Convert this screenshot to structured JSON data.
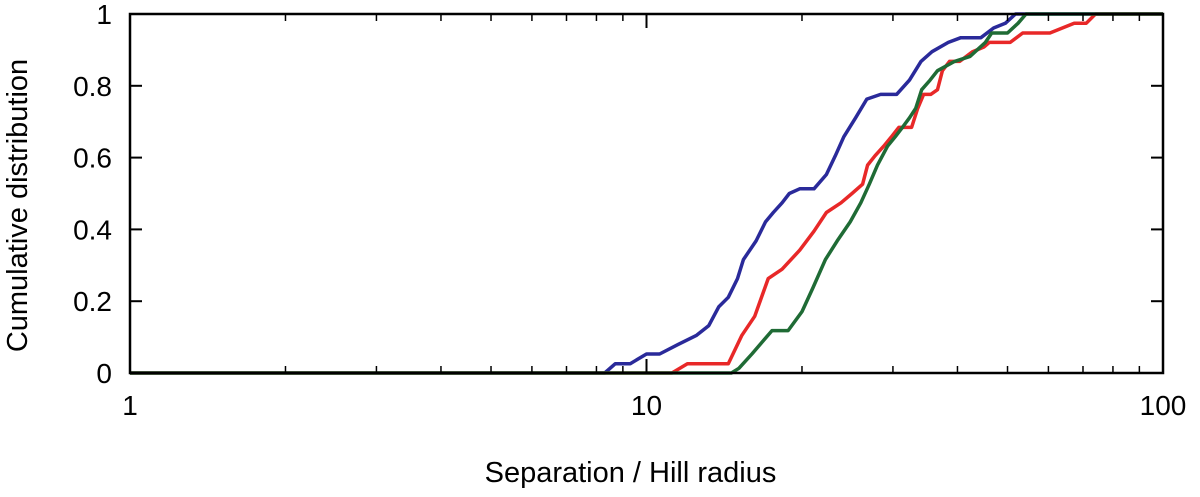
{
  "chart_data": {
    "type": "line",
    "title": "",
    "xlabel": "Separation / Hill radius",
    "ylabel": "Cumulative distribution",
    "x_scale": "log",
    "xlim": [
      1,
      100
    ],
    "ylim": [
      0,
      1
    ],
    "grid": false,
    "legend": "none",
    "x_ticks": [
      {
        "value": 1,
        "label": "1"
      },
      {
        "value": 10,
        "label": "10"
      },
      {
        "value": 100,
        "label": "100"
      }
    ],
    "y_ticks": [
      {
        "value": 0,
        "label": "0"
      },
      {
        "value": 0.2,
        "label": "0.2"
      },
      {
        "value": 0.4,
        "label": "0.4"
      },
      {
        "value": 0.6,
        "label": "0.6"
      },
      {
        "value": 0.8,
        "label": "0.8"
      },
      {
        "value": 1,
        "label": "1"
      }
    ],
    "series": [
      {
        "color": "#2a2a9a",
        "points": [
          [
            1,
            0
          ],
          [
            8.3,
            0
          ],
          [
            8.7,
            0.026
          ],
          [
            9.3,
            0.026
          ],
          [
            10.0,
            0.053
          ],
          [
            10.6,
            0.053
          ],
          [
            11.5,
            0.079
          ],
          [
            12.5,
            0.105
          ],
          [
            13.2,
            0.132
          ],
          [
            13.8,
            0.184
          ],
          [
            14.4,
            0.211
          ],
          [
            15.0,
            0.263
          ],
          [
            15.4,
            0.316
          ],
          [
            16.3,
            0.368
          ],
          [
            17.0,
            0.421
          ],
          [
            17.6,
            0.447
          ],
          [
            18.3,
            0.474
          ],
          [
            18.9,
            0.5
          ],
          [
            19.8,
            0.513
          ],
          [
            21.1,
            0.513
          ],
          [
            22.3,
            0.553
          ],
          [
            23.2,
            0.605
          ],
          [
            24.1,
            0.658
          ],
          [
            25.4,
            0.711
          ],
          [
            26.7,
            0.763
          ],
          [
            28.4,
            0.776
          ],
          [
            30.5,
            0.776
          ],
          [
            32.3,
            0.816
          ],
          [
            34.0,
            0.868
          ],
          [
            35.7,
            0.895
          ],
          [
            38.4,
            0.921
          ],
          [
            40.6,
            0.934
          ],
          [
            44.4,
            0.934
          ],
          [
            47.0,
            0.961
          ],
          [
            49.5,
            0.974
          ],
          [
            51.8,
            1.0
          ],
          [
            100,
            1.0
          ]
        ]
      },
      {
        "color": "#e82828",
        "points": [
          [
            1,
            0
          ],
          [
            11.2,
            0
          ],
          [
            12.0,
            0.026
          ],
          [
            14.4,
            0.026
          ],
          [
            15.3,
            0.105
          ],
          [
            16.2,
            0.158
          ],
          [
            17.2,
            0.263
          ],
          [
            18.3,
            0.289
          ],
          [
            19.8,
            0.342
          ],
          [
            21.1,
            0.395
          ],
          [
            22.3,
            0.447
          ],
          [
            23.8,
            0.474
          ],
          [
            25.0,
            0.5
          ],
          [
            26.2,
            0.526
          ],
          [
            26.8,
            0.579
          ],
          [
            27.7,
            0.605
          ],
          [
            28.8,
            0.632
          ],
          [
            29.8,
            0.658
          ],
          [
            30.8,
            0.684
          ],
          [
            32.6,
            0.684
          ],
          [
            33.5,
            0.737
          ],
          [
            34.4,
            0.776
          ],
          [
            35.5,
            0.776
          ],
          [
            36.6,
            0.789
          ],
          [
            37.4,
            0.842
          ],
          [
            38.6,
            0.868
          ],
          [
            40.4,
            0.868
          ],
          [
            42.8,
            0.895
          ],
          [
            45.0,
            0.908
          ],
          [
            46.1,
            0.921
          ],
          [
            50.6,
            0.921
          ],
          [
            53.5,
            0.947
          ],
          [
            60.4,
            0.947
          ],
          [
            67.3,
            0.974
          ],
          [
            71.0,
            0.974
          ],
          [
            74.0,
            1.0
          ],
          [
            100,
            1.0
          ]
        ]
      },
      {
        "color": "#1f6b35",
        "points": [
          [
            1,
            0
          ],
          [
            14.6,
            0
          ],
          [
            15.1,
            0.013
          ],
          [
            16.0,
            0.053
          ],
          [
            17.5,
            0.118
          ],
          [
            18.8,
            0.118
          ],
          [
            20.0,
            0.171
          ],
          [
            21.0,
            0.237
          ],
          [
            22.2,
            0.316
          ],
          [
            23.4,
            0.368
          ],
          [
            24.8,
            0.421
          ],
          [
            26.0,
            0.474
          ],
          [
            27.0,
            0.526
          ],
          [
            28.0,
            0.579
          ],
          [
            29.3,
            0.632
          ],
          [
            30.3,
            0.658
          ],
          [
            31.3,
            0.684
          ],
          [
            32.3,
            0.711
          ],
          [
            33.2,
            0.737
          ],
          [
            34.1,
            0.789
          ],
          [
            35.4,
            0.816
          ],
          [
            36.6,
            0.842
          ],
          [
            38.0,
            0.855
          ],
          [
            39.5,
            0.868
          ],
          [
            42.3,
            0.882
          ],
          [
            43.3,
            0.895
          ],
          [
            45.3,
            0.921
          ],
          [
            46.6,
            0.947
          ],
          [
            50.0,
            0.947
          ],
          [
            52.4,
            0.974
          ],
          [
            54.3,
            1.0
          ],
          [
            100,
            1.0
          ]
        ]
      }
    ]
  }
}
